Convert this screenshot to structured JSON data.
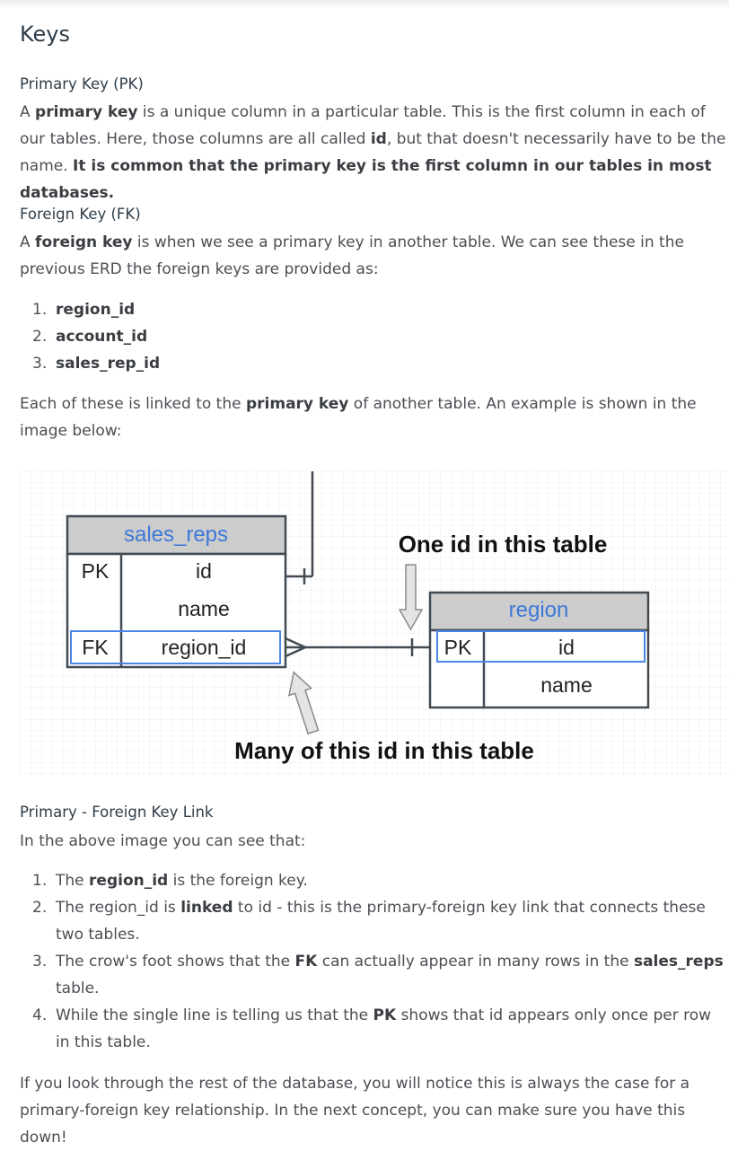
{
  "heading": "Keys",
  "pk_section": {
    "heading": "Primary Key (PK)",
    "p1_a": "A ",
    "p1_b": "primary key",
    "p1_c": " is a unique column in a particular table. This is the first column in each of our tables. Here, those columns are all called ",
    "p1_d": "id",
    "p1_e": ", but that doesn't necessarily have to be the name. ",
    "p1_f": "It is common that the primary key is the first column in our tables in most databases."
  },
  "fk_section": {
    "heading": "Foreign Key (FK)",
    "p1_a": "A ",
    "p1_b": "foreign key",
    "p1_c": " is when we see a primary key in another table. We can see these in the previous ERD the foreign keys are provided as:",
    "items": [
      "region_id",
      "account_id",
      "sales_rep_id"
    ],
    "p2_a": "Each of these is linked to the ",
    "p2_b": "primary key",
    "p2_c": " of another table. An example is shown in the image below:"
  },
  "diagram": {
    "left_table": {
      "name": "sales_reps",
      "rows": [
        {
          "key": "PK",
          "field": "id"
        },
        {
          "key": "",
          "field": "name"
        },
        {
          "key": "FK",
          "field": "region_id"
        }
      ]
    },
    "right_table": {
      "name": "region",
      "rows": [
        {
          "key": "PK",
          "field": "id"
        },
        {
          "key": "",
          "field": "name"
        }
      ]
    },
    "top_caption": "One id in this table",
    "bottom_caption": "Many of this id in this table",
    "colors": {
      "header_fill": "#cccccc",
      "border": "#424a52",
      "highlight": "#4a86e8",
      "region_title": "#3d78d8",
      "grid": "#eceef1"
    }
  },
  "link_section": {
    "heading": "Primary - Foreign Key Link",
    "intro": "In the above image you can see that:",
    "items": [
      {
        "a": "The ",
        "b": "region_id",
        "c": " is the foreign key.",
        "d": "",
        "e": ""
      },
      {
        "a": "The region_id is ",
        "b": "linked",
        "c": " to id - this is the primary-foreign key link that connects these two tables.",
        "d": "",
        "e": ""
      },
      {
        "a": "The crow's foot shows that the ",
        "b": "FK",
        "c": " can actually appear in many rows in the ",
        "d": "sales_reps",
        "e": " table."
      },
      {
        "a": "While the single line is telling us that the ",
        "b": "PK",
        "c": " shows that id appears only once per row in this table.",
        "d": "",
        "e": ""
      }
    ],
    "closing": "If you look through the rest of the database, you will notice this is always the case for a primary-foreign key relationship. In the next concept, you can make sure you have this down!"
  }
}
